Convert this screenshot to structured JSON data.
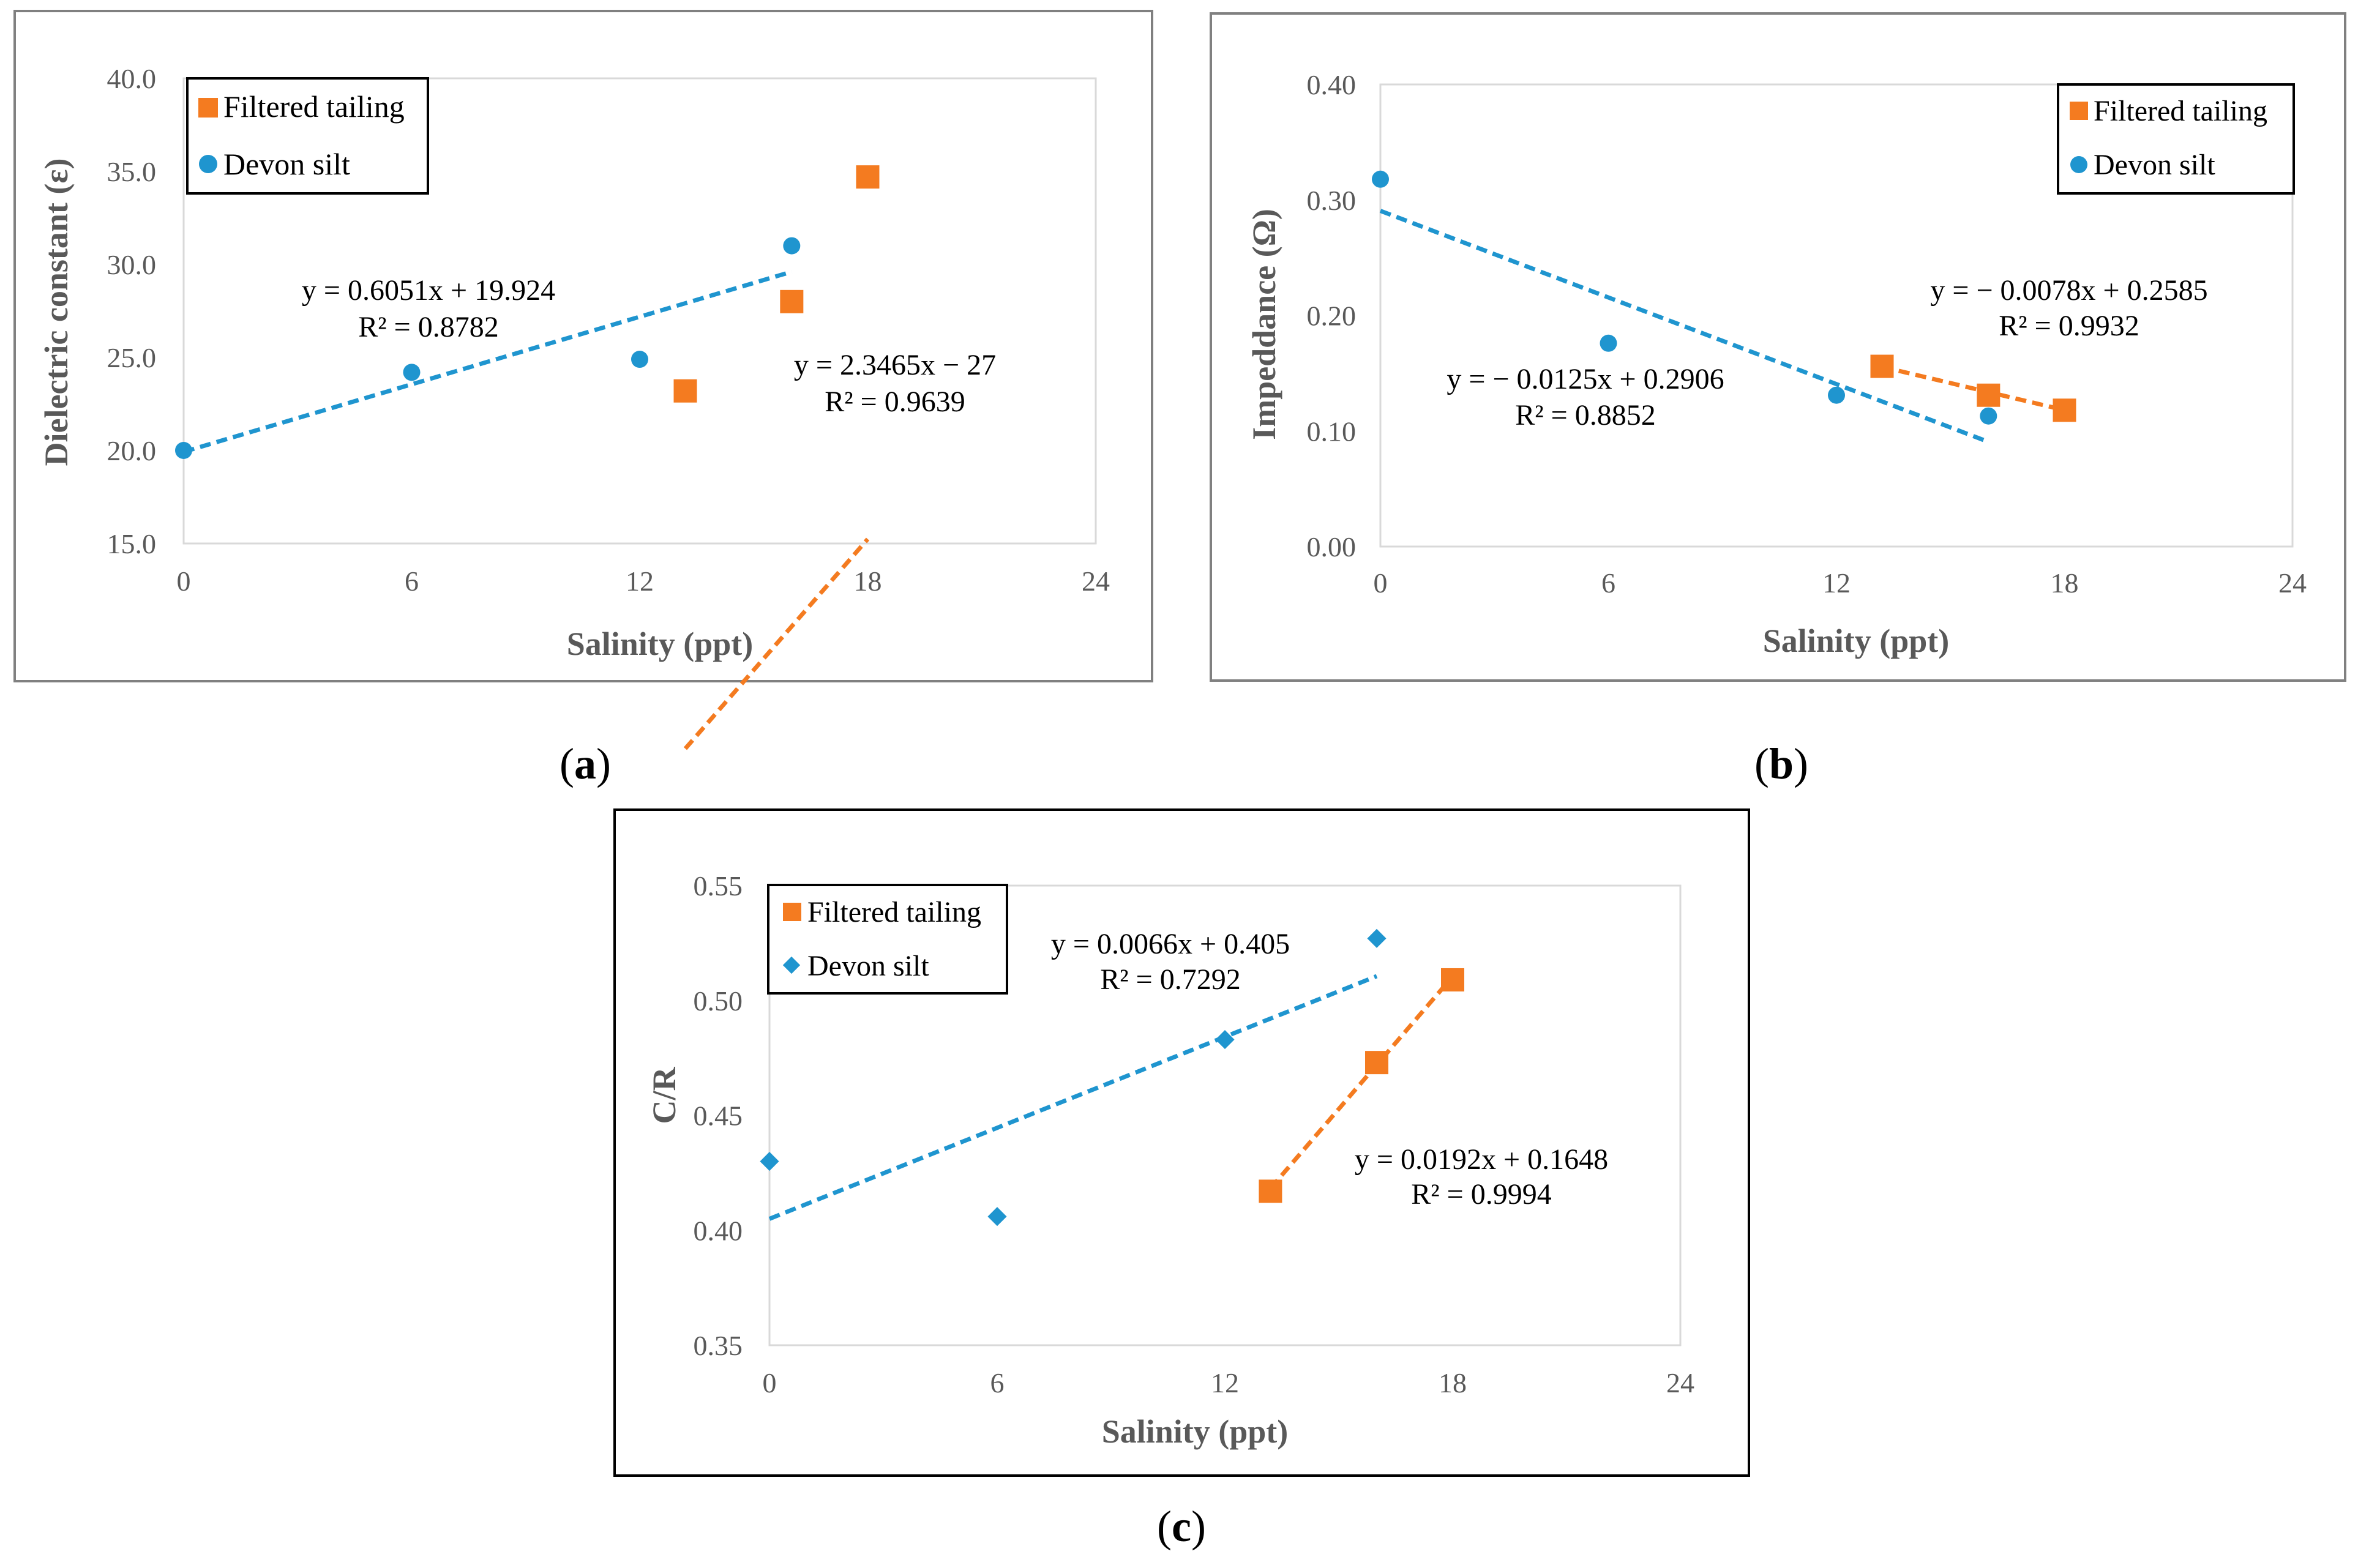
{
  "colors": {
    "tailing": "#F47B20",
    "silt": "#1F95CF",
    "axis": "#D9D9D9",
    "frame": "#808080",
    "text_gray": "#595959"
  },
  "panels": {
    "a": {
      "caption_label": "a",
      "legend": {
        "tailing": "Filtered tailing",
        "silt": "Devon silt"
      },
      "equations": {
        "silt_eq": "y = 0.6051x + 19.924",
        "silt_r2": "R² = 0.8782",
        "tailing_eq": "y = 2.3465x − 27",
        "tailing_r2": "R² = 0.9639"
      }
    },
    "b": {
      "caption_label": "b",
      "legend": {
        "tailing": "Filtered tailing",
        "silt": "Devon silt"
      },
      "equations": {
        "silt_eq": "y = − 0.0125x + 0.2906",
        "silt_r2": "R² = 0.8852",
        "tailing_eq": "y = − 0.0078x + 0.2585",
        "tailing_r2": "R² = 0.9932"
      }
    },
    "c": {
      "caption_label": "c",
      "legend": {
        "tailing": "Filtered tailing",
        "silt": "Devon silt"
      },
      "equations": {
        "silt_eq": "y = 0.0066x + 0.405",
        "silt_r2": "R² = 0.7292",
        "tailing_eq": "y = 0.0192x + 0.1648",
        "tailing_r2": "R² = 0.9994"
      }
    }
  },
  "chart_data": [
    {
      "id": "a",
      "type": "scatter",
      "title": "",
      "xlabel": "Salinity (ppt)",
      "ylabel": "Dielectric  constant (ε)",
      "xlim": [
        0,
        24
      ],
      "ylim": [
        15.0,
        40.0
      ],
      "xticks": [
        0,
        6,
        12,
        18,
        24
      ],
      "xtick_labels": [
        "0",
        "6",
        "12",
        "18",
        "24"
      ],
      "yticks": [
        15,
        20,
        25,
        30,
        35,
        40
      ],
      "ytick_labels": [
        "15.0",
        "20.0",
        "25.0",
        "30.0",
        "35.0",
        "40.0"
      ],
      "legend_position": "top-left",
      "series": [
        {
          "name": "Filtered tailing",
          "marker": "square",
          "x": [
            13.2,
            16,
            18
          ],
          "y": [
            23.2,
            28.0,
            34.7
          ],
          "trend": {
            "slope": 2.3465,
            "intercept": -27,
            "x_range": [
              13.2,
              18
            ]
          }
        },
        {
          "name": "Devon silt",
          "marker": "circle",
          "x": [
            0,
            6,
            12,
            16
          ],
          "y": [
            20.0,
            24.2,
            24.9,
            31.0
          ],
          "trend": {
            "slope": 0.6051,
            "intercept": 19.924,
            "x_range": [
              0,
              16
            ]
          }
        }
      ]
    },
    {
      "id": "b",
      "type": "scatter",
      "title": "",
      "xlabel": "Salinity (ppt)",
      "ylabel": "Impeddance (Ω)",
      "xlim": [
        0,
        24
      ],
      "ylim": [
        0.0,
        0.4
      ],
      "xticks": [
        0,
        6,
        12,
        18,
        24
      ],
      "xtick_labels": [
        "0",
        "6",
        "12",
        "18",
        "24"
      ],
      "yticks": [
        0.0,
        0.1,
        0.2,
        0.3,
        0.4
      ],
      "ytick_labels": [
        "0.00",
        "0.10",
        "0.20",
        "0.30",
        "0.40"
      ],
      "legend_position": "top-right",
      "series": [
        {
          "name": "Filtered tailing",
          "marker": "square",
          "x": [
            13.2,
            16,
            18
          ],
          "y": [
            0.156,
            0.131,
            0.118
          ],
          "trend": {
            "slope": -0.0078,
            "intercept": 0.2585,
            "x_range": [
              13.2,
              18
            ]
          }
        },
        {
          "name": "Devon silt",
          "marker": "circle",
          "x": [
            0,
            6,
            12,
            16
          ],
          "y": [
            0.318,
            0.176,
            0.131,
            0.113
          ],
          "trend": {
            "slope": -0.0125,
            "intercept": 0.2906,
            "x_range": [
              0,
              16
            ]
          }
        }
      ]
    },
    {
      "id": "c",
      "type": "scatter",
      "title": "",
      "xlabel": "Salinity (ppt)",
      "ylabel": "C/R",
      "xlim": [
        0,
        24
      ],
      "ylim": [
        0.35,
        0.55
      ],
      "xticks": [
        0,
        6,
        12,
        18,
        24
      ],
      "xtick_labels": [
        "0",
        "6",
        "12",
        "18",
        "24"
      ],
      "yticks": [
        0.35,
        0.4,
        0.45,
        0.5,
        0.55
      ],
      "ytick_labels": [
        "0.35",
        "0.40",
        "0.45",
        "0.50",
        "0.55"
      ],
      "legend_position": "top-left",
      "series": [
        {
          "name": "Filtered tailing",
          "marker": "square",
          "x": [
            13.2,
            16,
            18
          ],
          "y": [
            0.417,
            0.473,
            0.509
          ],
          "trend": {
            "slope": 0.0192,
            "intercept": 0.1648,
            "x_range": [
              13.2,
              18
            ]
          }
        },
        {
          "name": "Devon silt",
          "marker": "diamond",
          "x": [
            0,
            6,
            12,
            16
          ],
          "y": [
            0.43,
            0.406,
            0.483,
            0.527
          ],
          "trend": {
            "slope": 0.0066,
            "intercept": 0.405,
            "x_range": [
              0,
              16
            ]
          }
        }
      ]
    }
  ]
}
